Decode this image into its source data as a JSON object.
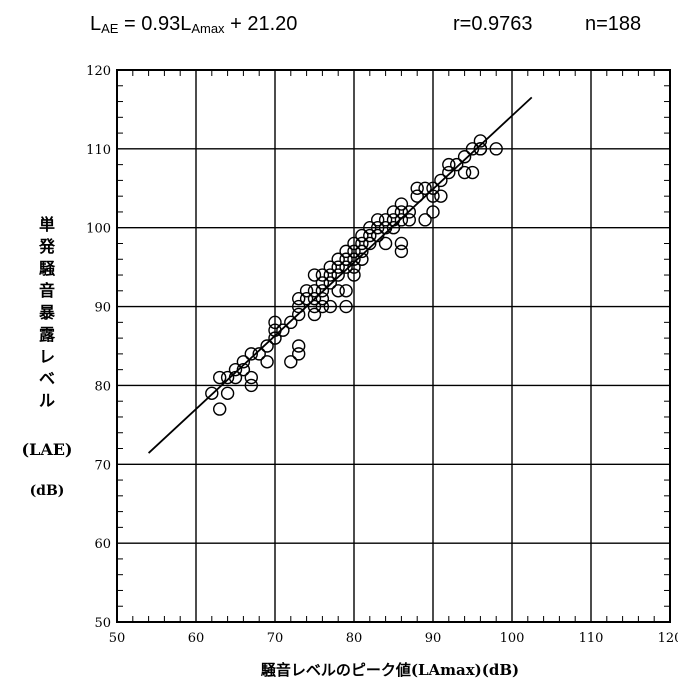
{
  "header": {
    "equation_lhs": "L",
    "equation_lhs_sub": "AE",
    "equation_mid": " = 0.93L",
    "equation_mid_sub": "Amax",
    "equation_tail": " + 21.20",
    "r_label": "r=0.9763",
    "n_label": "n=188"
  },
  "chart_data": {
    "type": "scatter",
    "title": "",
    "xlabel": "騒音レベルのピーク値(LAmax)(dB)",
    "ylabel": "単発騒音暴露レベル(LAE)(dB)",
    "ylabel_vertical": [
      "単",
      "発",
      "騒",
      "音",
      "暴",
      "露",
      "レ",
      "ベ",
      "ル"
    ],
    "ylabel_symbol": "(LAE)",
    "ylabel_unit": "(dB)",
    "xlim": [
      50,
      120
    ],
    "ylim": [
      50,
      120
    ],
    "xticks": [
      "50",
      "60",
      "70",
      "80",
      "90",
      "100",
      "110",
      "120"
    ],
    "yticks": [
      "50",
      "60",
      "70",
      "80",
      "90",
      "100",
      "110",
      "120"
    ],
    "grid": true,
    "regression": {
      "slope": 0.93,
      "intercept": 21.2,
      "x_range": [
        54,
        102.5
      ]
    },
    "series": [
      {
        "marker": "open-circle",
        "x": [
          62,
          63,
          63,
          64,
          64,
          65,
          65,
          66,
          66,
          67,
          67,
          67,
          68,
          69,
          69,
          70,
          70,
          70,
          71,
          72,
          72,
          73,
          73,
          73,
          73,
          73,
          74,
          74,
          75,
          75,
          75,
          75,
          75,
          76,
          76,
          76,
          76,
          76,
          77,
          77,
          77,
          77,
          78,
          78,
          78,
          78,
          79,
          79,
          79,
          79,
          79,
          80,
          80,
          80,
          80,
          80,
          81,
          81,
          81,
          81,
          82,
          82,
          82,
          83,
          83,
          83,
          84,
          84,
          84,
          85,
          85,
          85,
          86,
          86,
          86,
          86,
          86,
          87,
          87,
          88,
          88,
          89,
          89,
          90,
          90,
          90,
          91,
          91,
          92,
          92,
          93,
          94,
          94,
          95,
          95,
          96,
          96,
          96,
          98
        ],
        "y": [
          79,
          77,
          81,
          79,
          81,
          81,
          82,
          82,
          83,
          81,
          80,
          84,
          84,
          85,
          83,
          86,
          87,
          88,
          87,
          88,
          83,
          84,
          85,
          89,
          90,
          91,
          91,
          92,
          89,
          90,
          91,
          92,
          94,
          90,
          91,
          92,
          93,
          94,
          90,
          93,
          94,
          95,
          92,
          94,
          95,
          96,
          90,
          92,
          95,
          96,
          97,
          94,
          95,
          96,
          97,
          98,
          96,
          97,
          98,
          99,
          98,
          99,
          100,
          99,
          100,
          101,
          98,
          100,
          101,
          100,
          101,
          102,
          97,
          98,
          101,
          102,
          103,
          101,
          102,
          104,
          105,
          101,
          105,
          102,
          104,
          105,
          104,
          106,
          107,
          108,
          108,
          107,
          109,
          107,
          110,
          110,
          111,
          110,
          110
        ]
      }
    ]
  }
}
